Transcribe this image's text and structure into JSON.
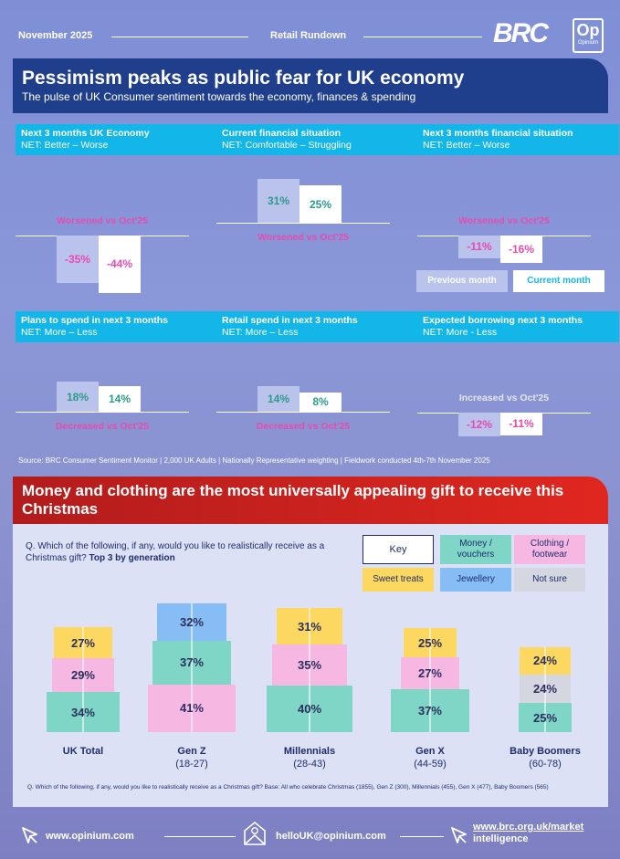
{
  "header": {
    "date": "November 2025",
    "title": "Retail Rundown",
    "brand_logo": "BRC",
    "partner_logo_main": "Op",
    "partner_logo_sub": "Opinium"
  },
  "banner": {
    "title": "Pessimism peaks as public fear for UK economy",
    "subtitle": "The pulse of UK Consumer sentiment towards the economy, finances & spending"
  },
  "legend": {
    "previous": "Previous month",
    "current": "Current month"
  },
  "metrics": [
    {
      "title": "Next 3 months UK Economy",
      "net": "NET: Better – Worse",
      "previous": -35,
      "current": -44,
      "prev_label": "-35%",
      "cur_label": "-44%",
      "change": "Worsened vs Oct'25"
    },
    {
      "title": "Current financial situation",
      "net": "NET: Comfortable – Struggling",
      "previous": 31,
      "current": 25,
      "prev_label": "31%",
      "cur_label": "25%",
      "change": "Worsened vs Oct'25"
    },
    {
      "title": "Next 3 months financial situation",
      "net": "NET: Better – Worse",
      "previous": -11,
      "current": -16,
      "prev_label": "-11%",
      "cur_label": "-16%",
      "change": "Worsened vs Oct'25"
    },
    {
      "title": "Plans to spend in next 3 months",
      "net": "NET: More – Less",
      "previous": 18,
      "current": 14,
      "prev_label": "18%",
      "cur_label": "14%",
      "change": "Decreased vs Oct'25"
    },
    {
      "title": "Retail spend in next 3 months",
      "net": "NET: More – Less",
      "previous": 14,
      "current": 8,
      "prev_label": "14%",
      "cur_label": "8%",
      "change": "Decreased vs Oct'25"
    },
    {
      "title": "Expected borrowing next 3 months",
      "net": "NET: More - Less",
      "previous": -12,
      "current": -11,
      "prev_label": "-12%",
      "cur_label": "-11%",
      "change": "Increased vs Oct'25"
    }
  ],
  "source": "Source: BRC Consumer Sentiment Monitor | 2,000 UK Adults | Nationally Representative weighting | Fieldwork conducted 4th-7th November 2025",
  "section2": {
    "title": "Money and clothing are the most universally appealing gift to receive this Christmas",
    "question_plain": "Q. Which of the following, if any, would you like to realistically receive as a Christmas gift?",
    "question_bold": "Top 3 by generation",
    "key_title": "Key",
    "key": [
      {
        "label": "Money / vouchers",
        "color": "#7fd6c6"
      },
      {
        "label": "Clothing / footwear",
        "color": "#f7b7e3"
      },
      {
        "label": "Sweet treats",
        "color": "#fcd860"
      },
      {
        "label": "Jewellery",
        "color": "#86bdf5"
      },
      {
        "label": "Not sure",
        "color": "#d4d6e0"
      }
    ],
    "footnote": "Q. Which of the following, if any, would you like to realistically receive as a Christmas gift? Base: All who celebrate Christmas (1855), Gen Z (300), Millennials (455), Gen X (477), Baby Boomers (565)"
  },
  "chart_data": {
    "type": "bar",
    "categories": [
      "UK Total",
      "Gen Z",
      "Millennials",
      "Gen X",
      "Baby Boomers"
    ],
    "ages": [
      "",
      "(18-27)",
      "(28-43)",
      "(44-59)",
      "(60-78)"
    ],
    "stacks": [
      [
        {
          "cat": "Money / vouchers",
          "value": 34,
          "label": "34%"
        },
        {
          "cat": "Clothing / footwear",
          "value": 29,
          "label": "29%"
        },
        {
          "cat": "Sweet treats",
          "value": 27,
          "label": "27%"
        }
      ],
      [
        {
          "cat": "Clothing / footwear",
          "value": 41,
          "label": "41%"
        },
        {
          "cat": "Money / vouchers",
          "value": 37,
          "label": "37%"
        },
        {
          "cat": "Jewellery",
          "value": 32,
          "label": "32%"
        }
      ],
      [
        {
          "cat": "Money / vouchers",
          "value": 40,
          "label": "40%"
        },
        {
          "cat": "Clothing / footwear",
          "value": 35,
          "label": "35%"
        },
        {
          "cat": "Sweet treats",
          "value": 31,
          "label": "31%"
        }
      ],
      [
        {
          "cat": "Money / vouchers",
          "value": 37,
          "label": "37%"
        },
        {
          "cat": "Clothing / footwear",
          "value": 27,
          "label": "27%"
        },
        {
          "cat": "Sweet treats",
          "value": 25,
          "label": "25%"
        }
      ],
      [
        {
          "cat": "Money / vouchers",
          "value": 25,
          "label": "25%"
        },
        {
          "cat": "Not sure",
          "value": 24,
          "label": "24%"
        },
        {
          "cat": "Sweet treats",
          "value": 24,
          "label": "24%"
        }
      ]
    ]
  },
  "footer": {
    "website": "www.opinium.com",
    "email": "helloUK@opinium.com",
    "brc_link_1": "www.brc.org.uk/market",
    "brc_link_2": "intelligence"
  }
}
